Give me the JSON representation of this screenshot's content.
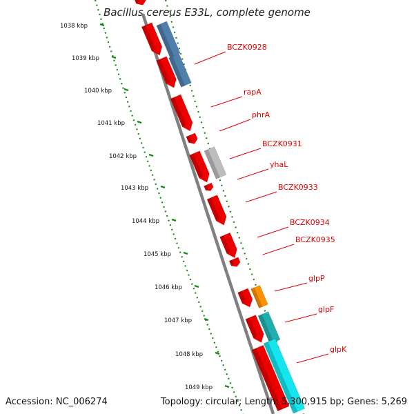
{
  "title": "Bacillus cereus E33L, complete genome",
  "footer": {
    "accession": "Accession: NC_006274",
    "summary": "Topology: circular; Length: 5,300,915 bp; Genes: 5,269"
  },
  "colors": {
    "gene_red": "#ee0000",
    "gene_blue": "#4f7fab",
    "gene_gray": "#bdbdbd",
    "gene_orange": "#ff9000",
    "gene_cyan": "#15e5ee",
    "gene_teal": "#21aeae",
    "backbone": "#808080",
    "tick_green": "#1a8a1a",
    "label_red": "#e00000"
  },
  "kbp_ticks": [
    "1038 kbp",
    "1039 kbp",
    "1040 kbp",
    "1041 kbp",
    "1042 kbp",
    "1043 kbp",
    "1044 kbp",
    "1045 kbp",
    "1046 kbp",
    "1047 kbp",
    "1048 kbp",
    "1049 kbp"
  ],
  "gene_labels": [
    "BCZK0928",
    "rapA",
    "phrA",
    "BCZK0931",
    "yhaL",
    "BCZK0933",
    "BCZK0934",
    "BCZK0935",
    "glpP",
    "glpF",
    "glpK"
  ]
}
